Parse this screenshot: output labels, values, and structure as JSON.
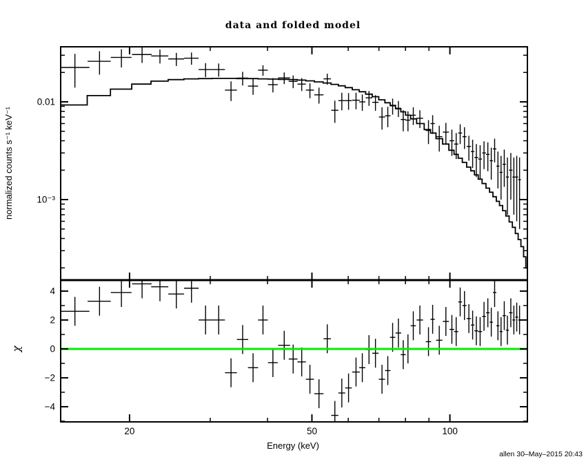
{
  "title": "data and folded model",
  "signature": "allen 30–May–2015 20:43",
  "colors": {
    "background": "#ffffff",
    "frame": "#000000",
    "data": "#000000",
    "zero_line": "#00ee00"
  },
  "chart_data": {
    "type": "line",
    "subtype": "xspec-spectrum-with-residuals",
    "title": "data and folded model",
    "xlabel": "Energy (keV)",
    "ylabel_top": "normalized counts s⁻¹ keV⁻¹",
    "ylabel_bottom": "χ",
    "x_scale": "log",
    "x_range": [
      14.15,
      147.6
    ],
    "y_top_scale": "log",
    "y_top_range": [
      0.00015,
      0.0366
    ],
    "y_bottom_scale": "linear",
    "y_bottom_range": [
      -5.05,
      4.76
    ],
    "grid": false,
    "legend": false,
    "x_major_ticks": [
      20,
      50,
      100
    ],
    "x_minor_ticks": [
      30,
      40,
      60,
      70,
      80,
      90
    ],
    "x_tick_labels": [
      {
        "v": 20,
        "label": "20"
      },
      {
        "v": 50,
        "label": "50"
      },
      {
        "v": 100,
        "label": "100"
      }
    ],
    "y_top_major_ticks": [
      0.01,
      0.001
    ],
    "y_top_minor_ticks": [
      0.0002,
      0.0003,
      0.0004,
      0.0005,
      0.0006,
      0.0007,
      0.0008,
      0.0009,
      0.002,
      0.003,
      0.004,
      0.005,
      0.006,
      0.007,
      0.008,
      0.009,
      0.02,
      0.03
    ],
    "y_top_tick_labels": [
      {
        "v": 0.01,
        "label": "0.01"
      },
      {
        "v": 0.001,
        "label": "10⁻³"
      }
    ],
    "y_bottom_major_ticks": [
      -4,
      -2,
      0,
      2,
      4
    ],
    "y_bottom_minor_ticks": [
      -5,
      -3,
      -1,
      1,
      3
    ],
    "y_bottom_tick_labels": [
      {
        "v": 4,
        "label": "4"
      },
      {
        "v": 2,
        "label": "2"
      },
      {
        "v": 0,
        "label": "0"
      },
      {
        "v": -2,
        "label": "−2"
      },
      {
        "v": -4,
        "label": "−4"
      }
    ],
    "zero_line_color": "#00ee00",
    "chi_error": 1.0,
    "points_columns": [
      "energy_keV",
      "half_width_keV",
      "rate_counts_s_keV",
      "rate_err",
      "chi"
    ],
    "points": [
      [
        15.2,
        1.15,
        0.0225,
        0.0085,
        2.6
      ],
      [
        17.2,
        1.0,
        0.026,
        0.007,
        3.3
      ],
      [
        19.2,
        1.0,
        0.0285,
        0.006,
        3.9
      ],
      [
        21.3,
        1.05,
        0.0305,
        0.0055,
        4.5
      ],
      [
        23.3,
        1.0,
        0.0295,
        0.0048,
        4.3
      ],
      [
        25.3,
        1.0,
        0.0275,
        0.0042,
        3.8
      ],
      [
        27.3,
        1.0,
        0.028,
        0.004,
        4.2
      ],
      [
        29.3,
        1.0,
        0.0214,
        0.0035,
        2.0
      ],
      [
        31.3,
        1.0,
        0.0214,
        0.0033,
        2.0
      ],
      [
        33.3,
        1.0,
        0.0132,
        0.003,
        -1.65
      ],
      [
        35.3,
        1.0,
        0.0175,
        0.0028,
        0.65
      ],
      [
        37.2,
        0.95,
        0.0145,
        0.0027,
        -1.3
      ],
      [
        39.1,
        0.95,
        0.0211,
        0.0026,
        2.0
      ],
      [
        41.1,
        1.0,
        0.015,
        0.0025,
        -0.95
      ],
      [
        43.5,
        1.3,
        0.0176,
        0.0024,
        0.25
      ],
      [
        45.5,
        1.0,
        0.0162,
        0.0024,
        -0.7
      ],
      [
        47.5,
        1.0,
        0.0152,
        0.0023,
        -0.9
      ],
      [
        49.5,
        1.0,
        0.0132,
        0.0023,
        -2.1
      ],
      [
        51.8,
        1.2,
        0.0118,
        0.0022,
        -3.1
      ],
      [
        54.0,
        1.0,
        0.0172,
        0.0022,
        0.7
      ],
      [
        56.1,
        1.0,
        0.0082,
        0.0021,
        -4.6
      ],
      [
        58.1,
        1.0,
        0.0103,
        0.0021,
        -3.05
      ],
      [
        60.1,
        1.0,
        0.0103,
        0.002,
        -2.7
      ],
      [
        62.4,
        1.2,
        0.0104,
        0.002,
        -1.6
      ],
      [
        64.4,
        1.0,
        0.01,
        0.0019,
        -1.3
      ],
      [
        66.6,
        1.1,
        0.011,
        0.0019,
        -0.05
      ],
      [
        68.8,
        1.1,
        0.0099,
        0.0018,
        -0.3
      ],
      [
        71.1,
        1.1,
        0.007,
        0.0018,
        -2.1
      ],
      [
        73.2,
        1.0,
        0.0072,
        0.0017,
        -1.5
      ],
      [
        75.0,
        1.0,
        0.0091,
        0.0017,
        0.8
      ],
      [
        77.2,
        1.1,
        0.0086,
        0.0016,
        1.1
      ],
      [
        79.1,
        1.0,
        0.0066,
        0.0016,
        -0.4
      ],
      [
        81.0,
        1.0,
        0.0065,
        0.0015,
        0.0
      ],
      [
        83.2,
        1.1,
        0.0073,
        0.0015,
        1.6
      ],
      [
        86.0,
        1.4,
        0.0068,
        0.0014,
        2.0
      ],
      [
        89.8,
        1.2,
        0.0051,
        0.0014,
        0.5
      ],
      [
        91.7,
        1.0,
        0.006,
        0.0013,
        2.05
      ],
      [
        94.8,
        1.5,
        0.0044,
        0.0013,
        0.6
      ],
      [
        98.0,
        1.5,
        0.0049,
        0.0012,
        1.9
      ],
      [
        101.0,
        1.2,
        0.004,
        0.0012,
        1.35
      ],
      [
        103.2,
        1.1,
        0.0037,
        0.0011,
        1.2
      ],
      [
        105.3,
        1.0,
        0.0048,
        0.0011,
        3.25
      ],
      [
        107.6,
        1.1,
        0.0044,
        0.0011,
        3.0
      ],
      [
        110.0,
        1.2,
        0.0035,
        0.001,
        2.1
      ],
      [
        112.1,
        1.0,
        0.0031,
        0.001,
        1.65
      ],
      [
        114.2,
        1.1,
        0.0027,
        0.001,
        1.25
      ],
      [
        116.4,
        1.1,
        0.0026,
        0.001,
        1.2
      ],
      [
        118.7,
        1.1,
        0.003,
        0.00095,
        2.25
      ],
      [
        121.0,
        1.1,
        0.0029,
        0.00095,
        2.5
      ],
      [
        123.1,
        1.0,
        0.0025,
        0.0009,
        1.85
      ],
      [
        125.2,
        1.1,
        0.0033,
        0.0009,
        3.9
      ],
      [
        127.3,
        1.0,
        0.0022,
        0.0009,
        1.6
      ],
      [
        129.3,
        1.0,
        0.0019,
        0.0009,
        1.2
      ],
      [
        131.4,
        1.1,
        0.0023,
        0.00095,
        2.3
      ],
      [
        133.5,
        1.0,
        0.0017,
        0.001,
        1.3
      ],
      [
        135.8,
        1.2,
        0.002,
        0.001,
        2.5
      ],
      [
        137.9,
        1.0,
        0.0017,
        0.001,
        2.0
      ],
      [
        139.9,
        1.0,
        0.0017,
        0.0011,
        2.2
      ],
      [
        141.9,
        1.0,
        0.0016,
        0.0011,
        2.0
      ]
    ],
    "model": {
      "name": "folded model",
      "e": [
        15.2,
        17.2,
        19.2,
        21.3,
        23.3,
        25.3,
        27.3,
        29.3,
        31.3,
        33.3,
        35.3,
        37.2,
        39.1,
        41.1,
        43.5,
        45.5,
        47.5,
        49.5,
        51.8,
        54.0,
        56.1,
        58.1,
        60.1,
        62.4,
        64.4,
        66.6,
        68.8,
        71.1,
        73.2,
        75.0,
        77.2,
        79.1,
        81.0,
        83.2,
        86.0,
        89.8,
        91.7,
        94.8,
        98.0,
        101.0,
        103.2,
        105.3,
        107.6,
        110.0,
        112.1,
        114.2,
        116.4,
        118.7,
        121.0,
        123.1,
        125.2,
        127.3,
        129.3,
        131.4,
        133.5,
        135.8,
        137.9,
        139.9,
        141.9,
        143.9,
        145.7,
        147.2
      ],
      "v": [
        0.0093,
        0.0116,
        0.0135,
        0.0152,
        0.0163,
        0.0169,
        0.0172,
        0.0173,
        0.0174,
        0.0174,
        0.0173,
        0.0173,
        0.0172,
        0.0171,
        0.017,
        0.0169,
        0.0167,
        0.0164,
        0.016,
        0.0156,
        0.0151,
        0.0146,
        0.014,
        0.0133,
        0.0127,
        0.012,
        0.0113,
        0.0105,
        0.0098,
        0.0092,
        0.0085,
        0.0079,
        0.0073,
        0.0067,
        0.006,
        0.0052,
        0.0048,
        0.0042,
        0.0037,
        0.0032,
        0.0029,
        0.00265,
        0.0024,
        0.00215,
        0.00197,
        0.00179,
        0.00162,
        0.00146,
        0.00131,
        0.00119,
        0.00107,
        0.00096,
        0.00087,
        0.00077,
        0.00068,
        0.00059,
        0.00052,
        0.00045,
        0.00039,
        0.00033,
        0.00026,
        0.0002
      ]
    }
  }
}
